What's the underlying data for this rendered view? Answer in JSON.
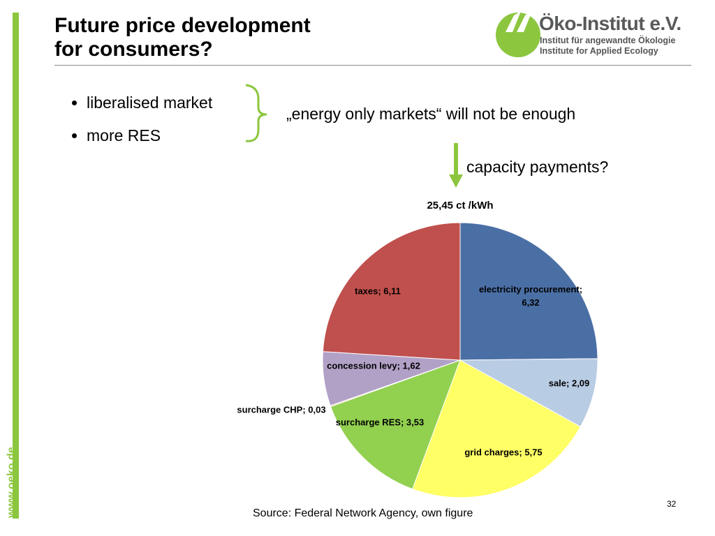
{
  "slide": {
    "title_lines": [
      "Future price development",
      "for consumers?"
    ],
    "logo": {
      "name": "Öko-Institut e.V.",
      "line1": "Institut für angewandte Ökologie",
      "line2": "Institute for Applied Ecology"
    },
    "bullets": [
      "liberalised market",
      "more RES"
    ],
    "quote": "„energy only markets“ will not be enough",
    "arrow_text": "capacity payments?",
    "source": "Source: Federal Network Agency, own figure",
    "page_number": "32",
    "side_url": "www.oeko.de"
  },
  "chart_data": {
    "type": "pie",
    "title": "25,45 ct /kWh",
    "values": [
      6.32,
      2.09,
      5.75,
      3.53,
      0.03,
      1.62,
      6.11
    ],
    "value_labels": [
      "electricity procurement; 6,32",
      "sale; 2,09",
      "grid charges; 5,75",
      "surcharge RES; 3,53",
      "surcharge CHP; 0,03",
      "concession levy; 1,62",
      "taxes; 6,11"
    ],
    "colors": [
      "#4a6fa5",
      "#b8cce4",
      "#ffff66",
      "#92d050",
      "#f79646",
      "#b2a1c7",
      "#c0504d"
    ]
  }
}
